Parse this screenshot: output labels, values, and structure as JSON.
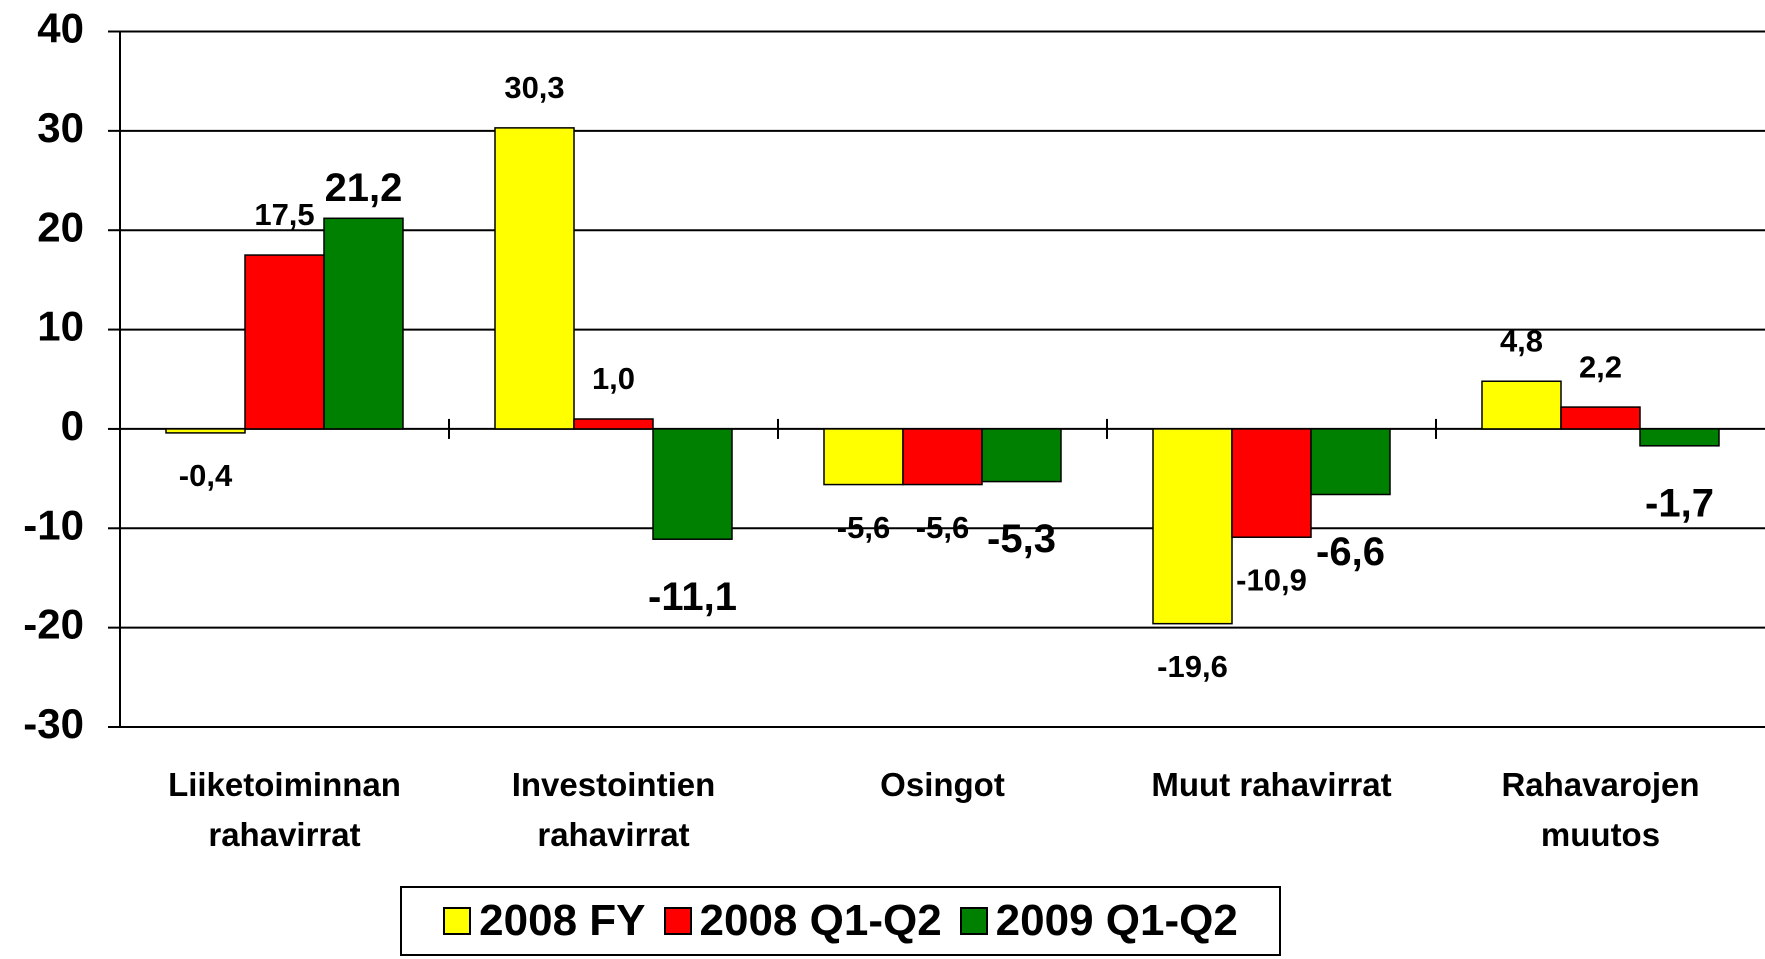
{
  "chart_data": {
    "type": "bar",
    "categories": [
      "Liiketoiminnan\nrahavirrat",
      "Investointien\nrahavirrat",
      "Osingot",
      "Muut rahavirrat",
      "Rahavarojen\nmuutos"
    ],
    "series": [
      {
        "name": "2008 FY",
        "color": "#ffff00",
        "values": [
          -0.4,
          30.3,
          -5.6,
          -19.6,
          4.8
        ],
        "value_labels": [
          "-0,4",
          "30,3",
          "-5,6",
          "-19,6",
          "4,8"
        ]
      },
      {
        "name": "2008 Q1-Q2",
        "color": "#ff0000",
        "values": [
          17.5,
          1.0,
          -5.6,
          -10.9,
          2.2
        ],
        "value_labels": [
          "17,5",
          "1,0",
          "-5,6",
          "-10,9",
          "2,2"
        ]
      },
      {
        "name": "2009 Q1-Q2",
        "color": "#008000",
        "values": [
          21.2,
          -11.1,
          -5.3,
          -6.6,
          -1.7
        ],
        "value_labels": [
          "21,2",
          "-11,1",
          "-5,3",
          "-6,6",
          "-1,7"
        ]
      }
    ],
    "ylim": [
      -30,
      40
    ],
    "yticks": [
      -30,
      -20,
      -10,
      0,
      10,
      20,
      30,
      40
    ],
    "grid": true,
    "legend": "bottom"
  }
}
